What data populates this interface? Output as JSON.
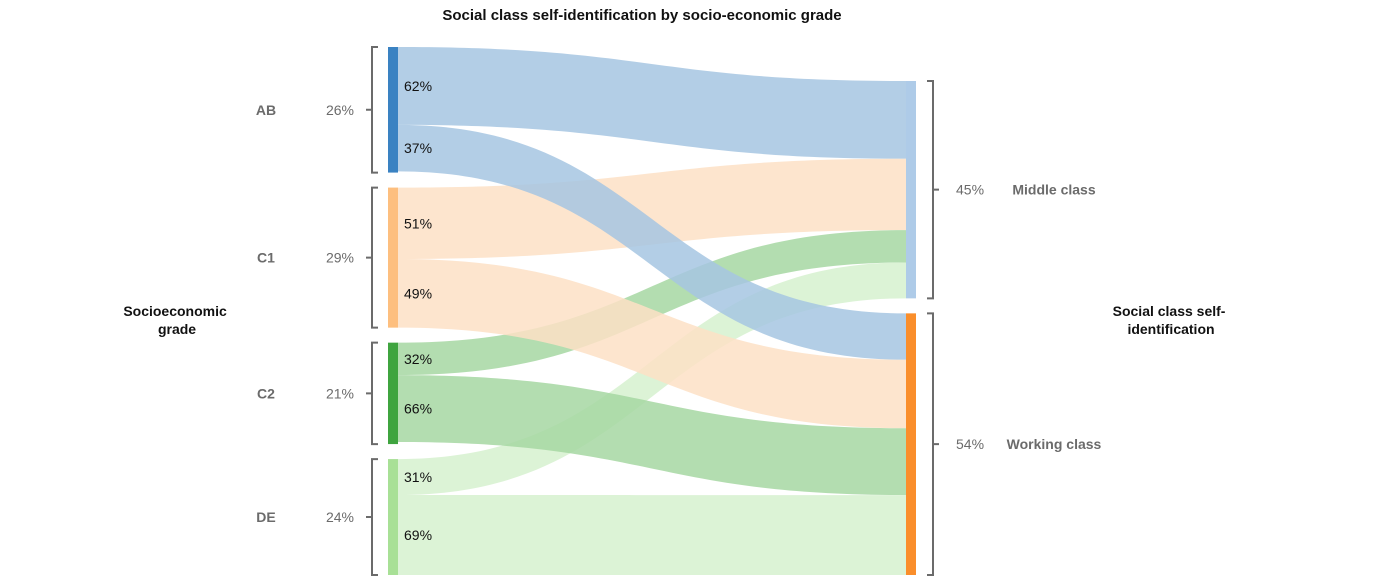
{
  "chart_data": {
    "type": "sankey",
    "title": "Social class self-identification by socio-economic grade",
    "left_axis_title": [
      "Socioeconomic",
      "grade"
    ],
    "right_axis_title": [
      "Social class self-",
      "identification"
    ],
    "sources": [
      {
        "name": "AB",
        "share_label": "26%",
        "share": 26,
        "color": "#3a82c2",
        "flow_color": "#a6c5e2"
      },
      {
        "name": "C1",
        "share_label": "29%",
        "share": 29,
        "color": "#fdbf7f",
        "flow_color": "#fde1c6"
      },
      {
        "name": "C2",
        "share_label": "21%",
        "share": 21,
        "color": "#3fa43f",
        "flow_color": "#a6d7a2"
      },
      {
        "name": "DE",
        "share_label": "24%",
        "share": 24,
        "color": "#a8e096",
        "flow_color": "#d6f1cf"
      }
    ],
    "targets": [
      {
        "name": "Middle class",
        "share_label": "45%",
        "share": 45,
        "color": "#aecbe8"
      },
      {
        "name": "Working class",
        "share_label": "54%",
        "share": 54,
        "color": "#fa8e2b"
      }
    ],
    "flows": [
      {
        "source": "AB",
        "target": "Middle class",
        "percent": 62,
        "label": "62%"
      },
      {
        "source": "AB",
        "target": "Working class",
        "percent": 37,
        "label": "37%"
      },
      {
        "source": "C1",
        "target": "Middle class",
        "percent": 51,
        "label": "51%"
      },
      {
        "source": "C1",
        "target": "Working class",
        "percent": 49,
        "label": "49%"
      },
      {
        "source": "C2",
        "target": "Middle class",
        "percent": 32,
        "label": "32%"
      },
      {
        "source": "C2",
        "target": "Working class",
        "percent": 66,
        "label": "66%"
      },
      {
        "source": "DE",
        "target": "Middle class",
        "percent": 31,
        "label": "31%"
      },
      {
        "source": "DE",
        "target": "Working class",
        "percent": 69,
        "label": "69%"
      }
    ]
  }
}
